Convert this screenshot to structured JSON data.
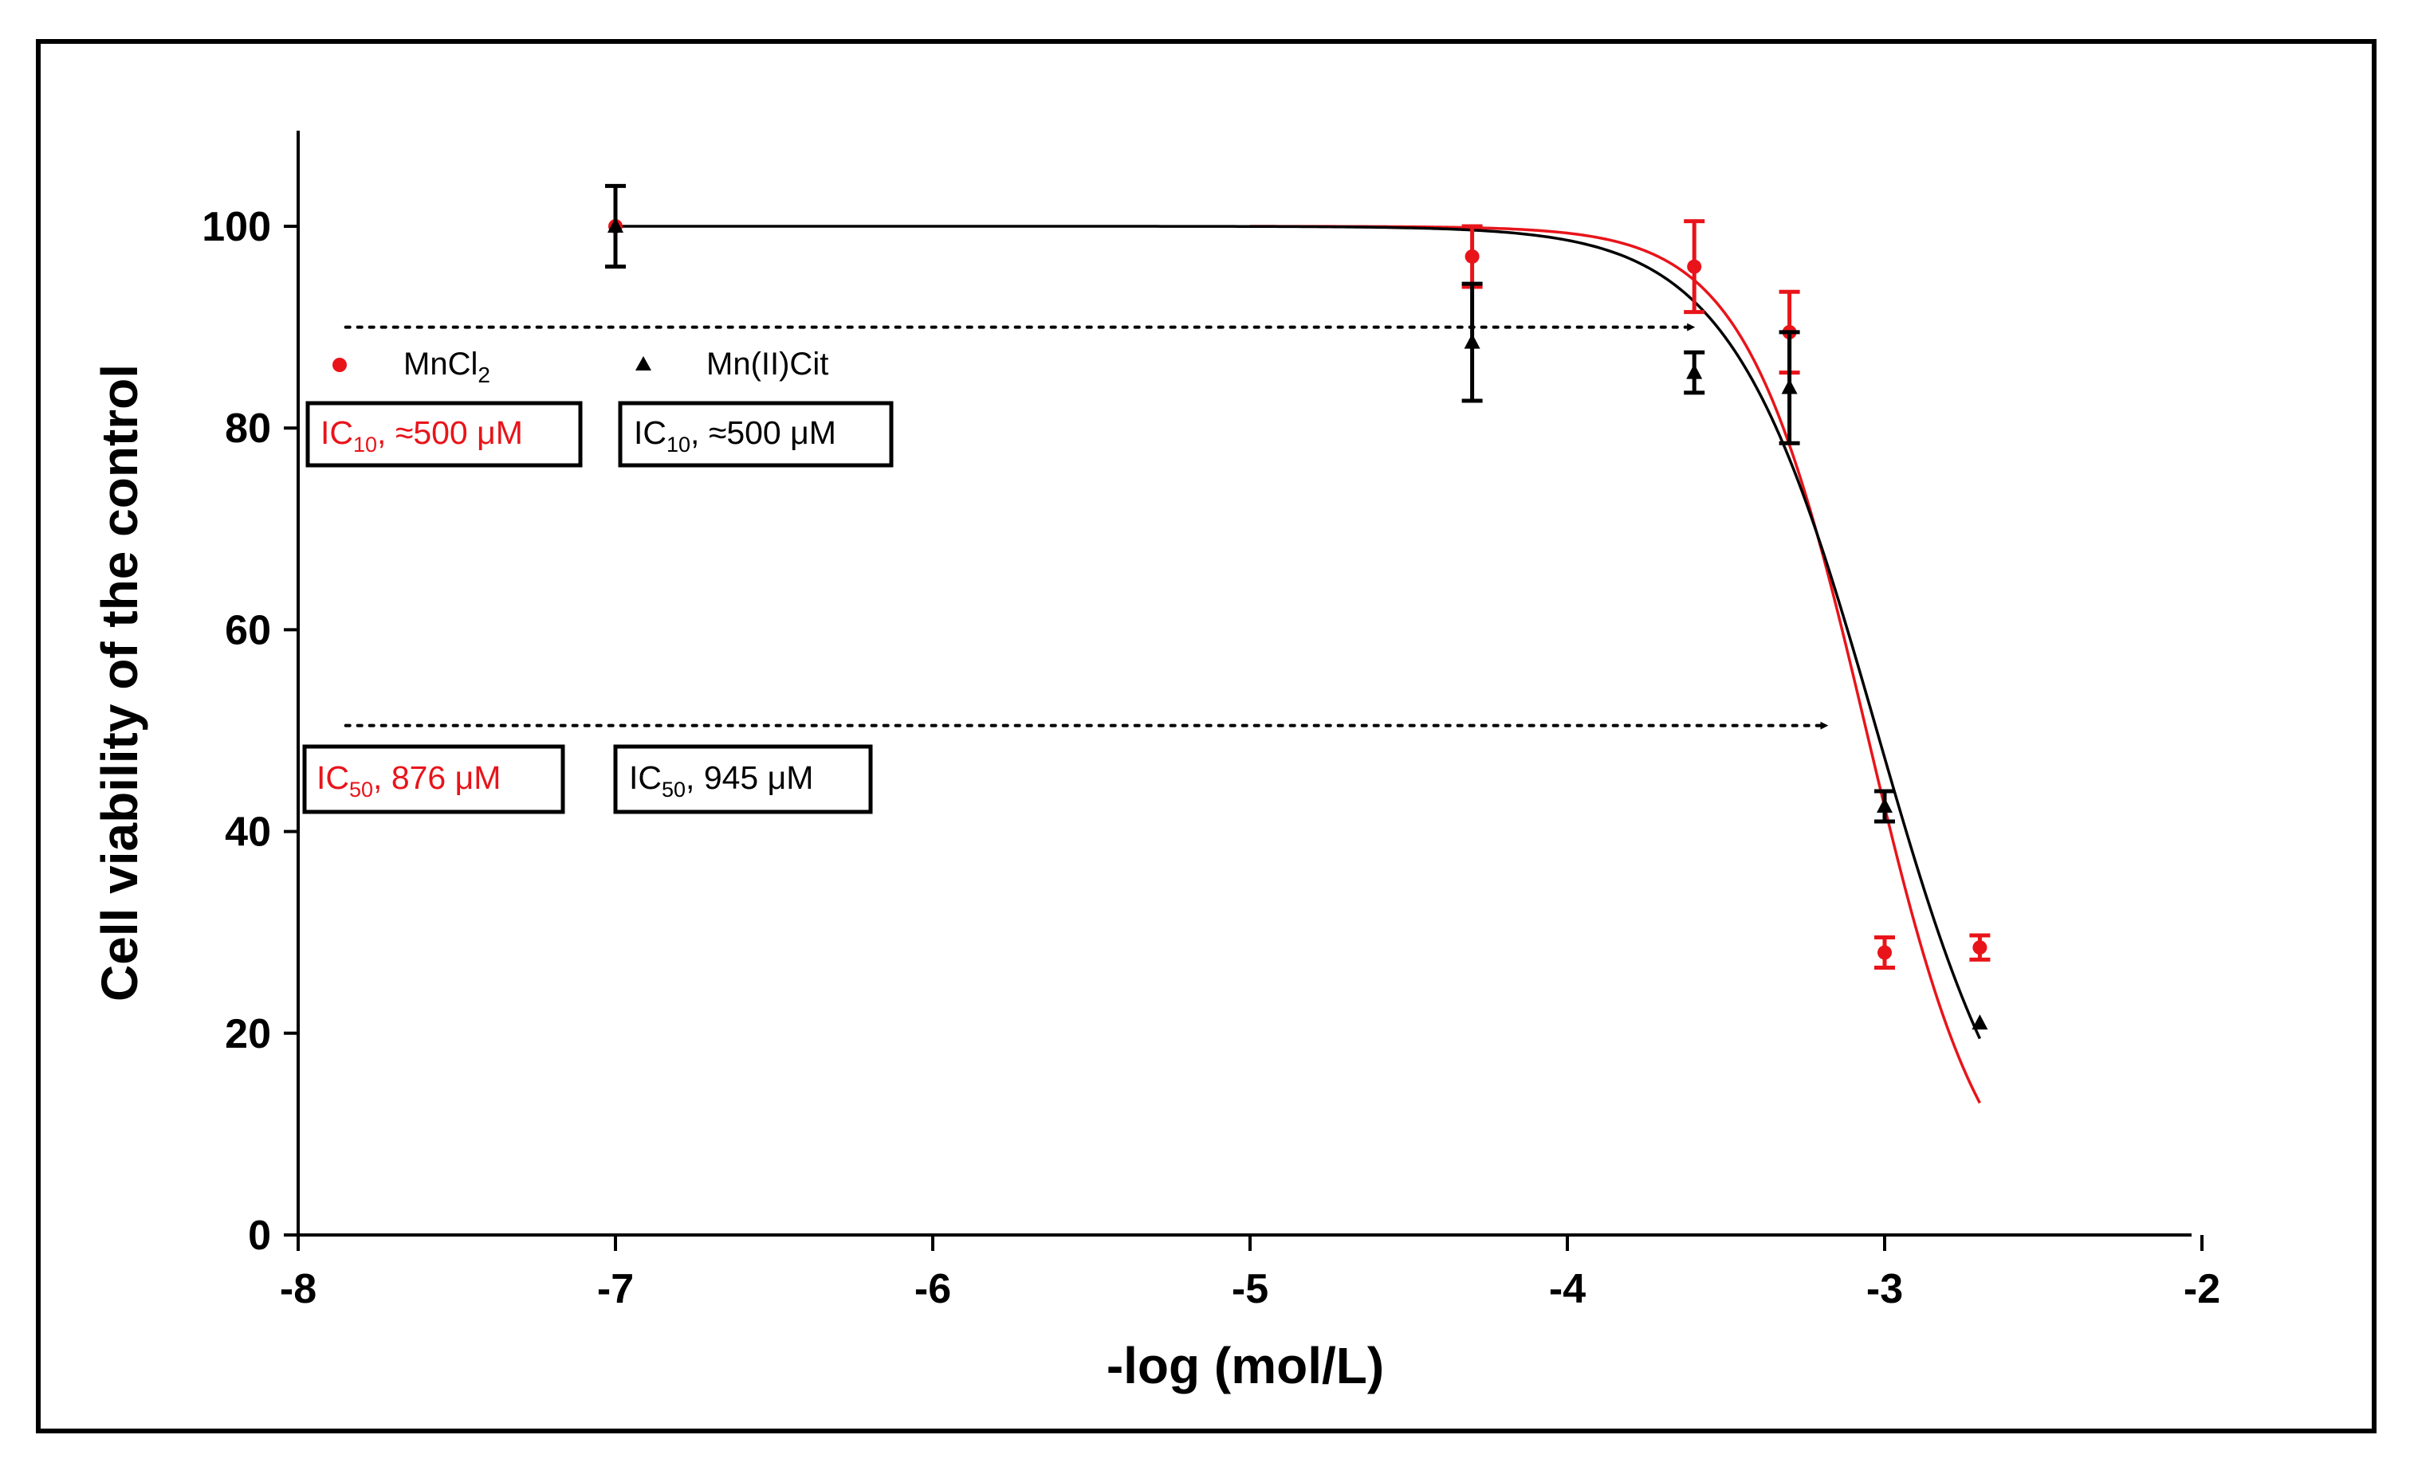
{
  "chart_data": {
    "type": "scatter",
    "xlabel": "-log (mol/L)",
    "ylabel": "Cell viability of the control",
    "xlim": [
      -8,
      -2
    ],
    "ylim": [
      0,
      110
    ],
    "x_ticks": [
      "-8",
      "-7",
      "-6",
      "-5",
      "-4",
      "-3",
      "-2"
    ],
    "y_ticks": [
      "0",
      "20",
      "40",
      "60",
      "80",
      "100"
    ],
    "series": [
      {
        "name": "MnCl",
        "name_sub": "2",
        "color": "#e8141a",
        "marker": "circle",
        "points": [
          {
            "x": -7.0,
            "y": 100,
            "err": 0
          },
          {
            "x": -4.3,
            "y": 97,
            "err": 3
          },
          {
            "x": -3.6,
            "y": 96,
            "err": 4.5
          },
          {
            "x": -3.3,
            "y": 89.5,
            "err": 4
          },
          {
            "x": -3.0,
            "y": 28,
            "err": 1.5
          },
          {
            "x": -2.7,
            "y": 28.5,
            "err": 1.2
          }
        ],
        "fit": {
          "top": 100,
          "bottom": 0,
          "log_ic50": -3.0575,
          "hill": 2.3,
          "x_start": -5.0,
          "x_end": -2.7
        }
      },
      {
        "name": "Mn(II)Cit",
        "name_sub": "",
        "color": "#000000",
        "marker": "triangle",
        "points": [
          {
            "x": -7.0,
            "y": 100,
            "err": 4
          },
          {
            "x": -4.3,
            "y": 88.5,
            "err": 5.8
          },
          {
            "x": -3.6,
            "y": 85.5,
            "err": 2
          },
          {
            "x": -3.3,
            "y": 84,
            "err": 5.5
          },
          {
            "x": -3.0,
            "y": 42.5,
            "err": 1.5
          },
          {
            "x": -2.7,
            "y": 21,
            "err": 0
          }
        ],
        "fit": {
          "top": 100,
          "bottom": 0,
          "log_ic50": -3.0246,
          "hill": 1.9,
          "x_start": -7.0,
          "x_end": -2.7
        }
      }
    ],
    "reference_lines": [
      {
        "y": 90,
        "x_from": -7.85,
        "x_to": -3.6,
        "style": "dotted-arrow"
      },
      {
        "y": 50.5,
        "x_from": -7.85,
        "x_to": -3.18,
        "style": "dotted-arrow"
      }
    ],
    "annotations": [
      {
        "label": "IC",
        "sub": "10",
        "text": ", ≈500 μM",
        "color": "#e8141a"
      },
      {
        "label": "IC",
        "sub": "10",
        "text": ", ≈500 μM",
        "color": "#000000"
      },
      {
        "label": "IC",
        "sub": "50",
        "text": ", 876 μM",
        "color": "#e8141a"
      },
      {
        "label": "IC",
        "sub": "50",
        "text": ", 945 μM",
        "color": "#000000"
      }
    ]
  }
}
